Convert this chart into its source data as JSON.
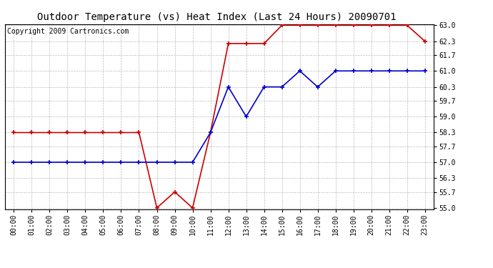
{
  "title": "Outdoor Temperature (vs) Heat Index (Last 24 Hours) 20090701",
  "copyright": "Copyright 2009 Cartronics.com",
  "hours": [
    "00:00",
    "01:00",
    "02:00",
    "03:00",
    "04:00",
    "05:00",
    "06:00",
    "07:00",
    "08:00",
    "09:00",
    "10:00",
    "11:00",
    "12:00",
    "13:00",
    "14:00",
    "15:00",
    "16:00",
    "17:00",
    "18:00",
    "19:00",
    "20:00",
    "21:00",
    "22:00",
    "23:00"
  ],
  "red_data": [
    58.3,
    58.3,
    58.3,
    58.3,
    58.3,
    58.3,
    58.3,
    58.3,
    55.0,
    55.7,
    55.0,
    58.3,
    62.2,
    62.2,
    62.2,
    63.0,
    63.0,
    63.0,
    63.0,
    63.0,
    63.0,
    63.0,
    63.0,
    62.3
  ],
  "blue_data": [
    57.0,
    57.0,
    57.0,
    57.0,
    57.0,
    57.0,
    57.0,
    57.0,
    57.0,
    57.0,
    57.0,
    58.3,
    60.3,
    59.0,
    60.3,
    60.3,
    61.0,
    60.3,
    61.0,
    61.0,
    61.0,
    61.0,
    61.0,
    61.0
  ],
  "red_color": "#cc0000",
  "blue_color": "#0000cc",
  "bg_color": "#ffffff",
  "grid_color": "#bbbbbb",
  "ylim_min": 55.0,
  "ylim_max": 63.0,
  "yticks": [
    55.0,
    55.7,
    56.3,
    57.0,
    57.7,
    58.3,
    59.0,
    59.7,
    60.3,
    61.0,
    61.7,
    62.3,
    63.0
  ],
  "title_fontsize": 10,
  "copyright_fontsize": 7,
  "tick_fontsize": 7
}
